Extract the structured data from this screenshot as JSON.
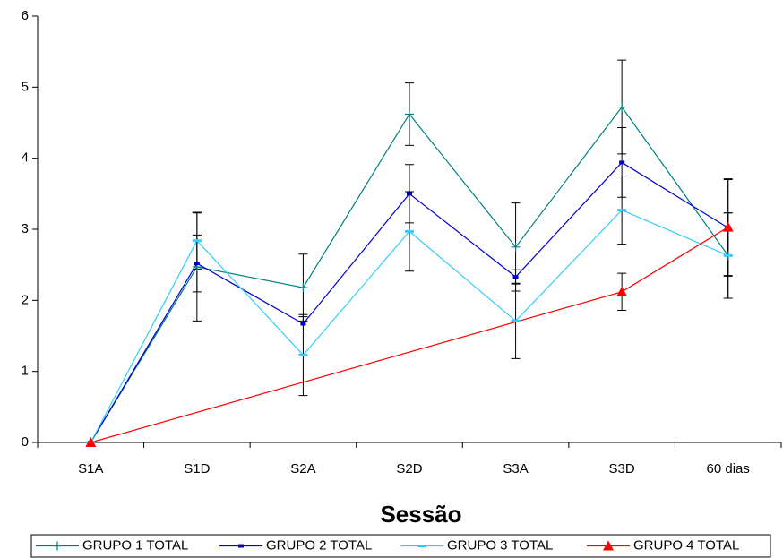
{
  "chart_data": {
    "type": "line",
    "x_label": "Sessão",
    "categories": [
      "S1A",
      "S1D",
      "S2A",
      "S2D",
      "S3A",
      "S3D",
      "60 dias"
    ],
    "series": [
      {
        "name": "GRUPO 1 TOTAL",
        "color": "#008080",
        "marker": "plus",
        "values": [
          0,
          2.47,
          2.18,
          4.62,
          2.75,
          4.72,
          2.63
        ],
        "errors": [
          null,
          0.76,
          0.47,
          0.44,
          0.62,
          0.66,
          0.6
        ]
      },
      {
        "name": "GRUPO 2 TOTAL",
        "color": "#0000CC",
        "marker": "dash",
        "values": [
          0,
          2.52,
          1.67,
          3.5,
          2.33,
          3.94,
          3.02
        ],
        "errors": [
          null,
          0.4,
          0.1,
          0.41,
          0.1,
          0.49,
          0.68
        ]
      },
      {
        "name": "GRUPO 3 TOTAL",
        "color": "#33CCFF",
        "marker": "wide-dash",
        "values": [
          0,
          2.84,
          1.23,
          2.97,
          1.71,
          3.27,
          2.63
        ],
        "errors": [
          null,
          0.4,
          0.57,
          0.56,
          0.53,
          0.48,
          0.6
        ]
      },
      {
        "name": "GRUPO 4 TOTAL",
        "color": "#FF0000",
        "marker": "triangle",
        "values": [
          0,
          null,
          null,
          null,
          null,
          2.12,
          3.03
        ],
        "errors": [
          null,
          null,
          null,
          null,
          null,
          0.26,
          0.68
        ]
      }
    ],
    "connect_gaps": true,
    "ylim": [
      0,
      6
    ],
    "yticks": [
      0,
      1,
      2,
      3,
      4,
      5,
      6
    ],
    "grid": false,
    "legend": "bottom"
  }
}
